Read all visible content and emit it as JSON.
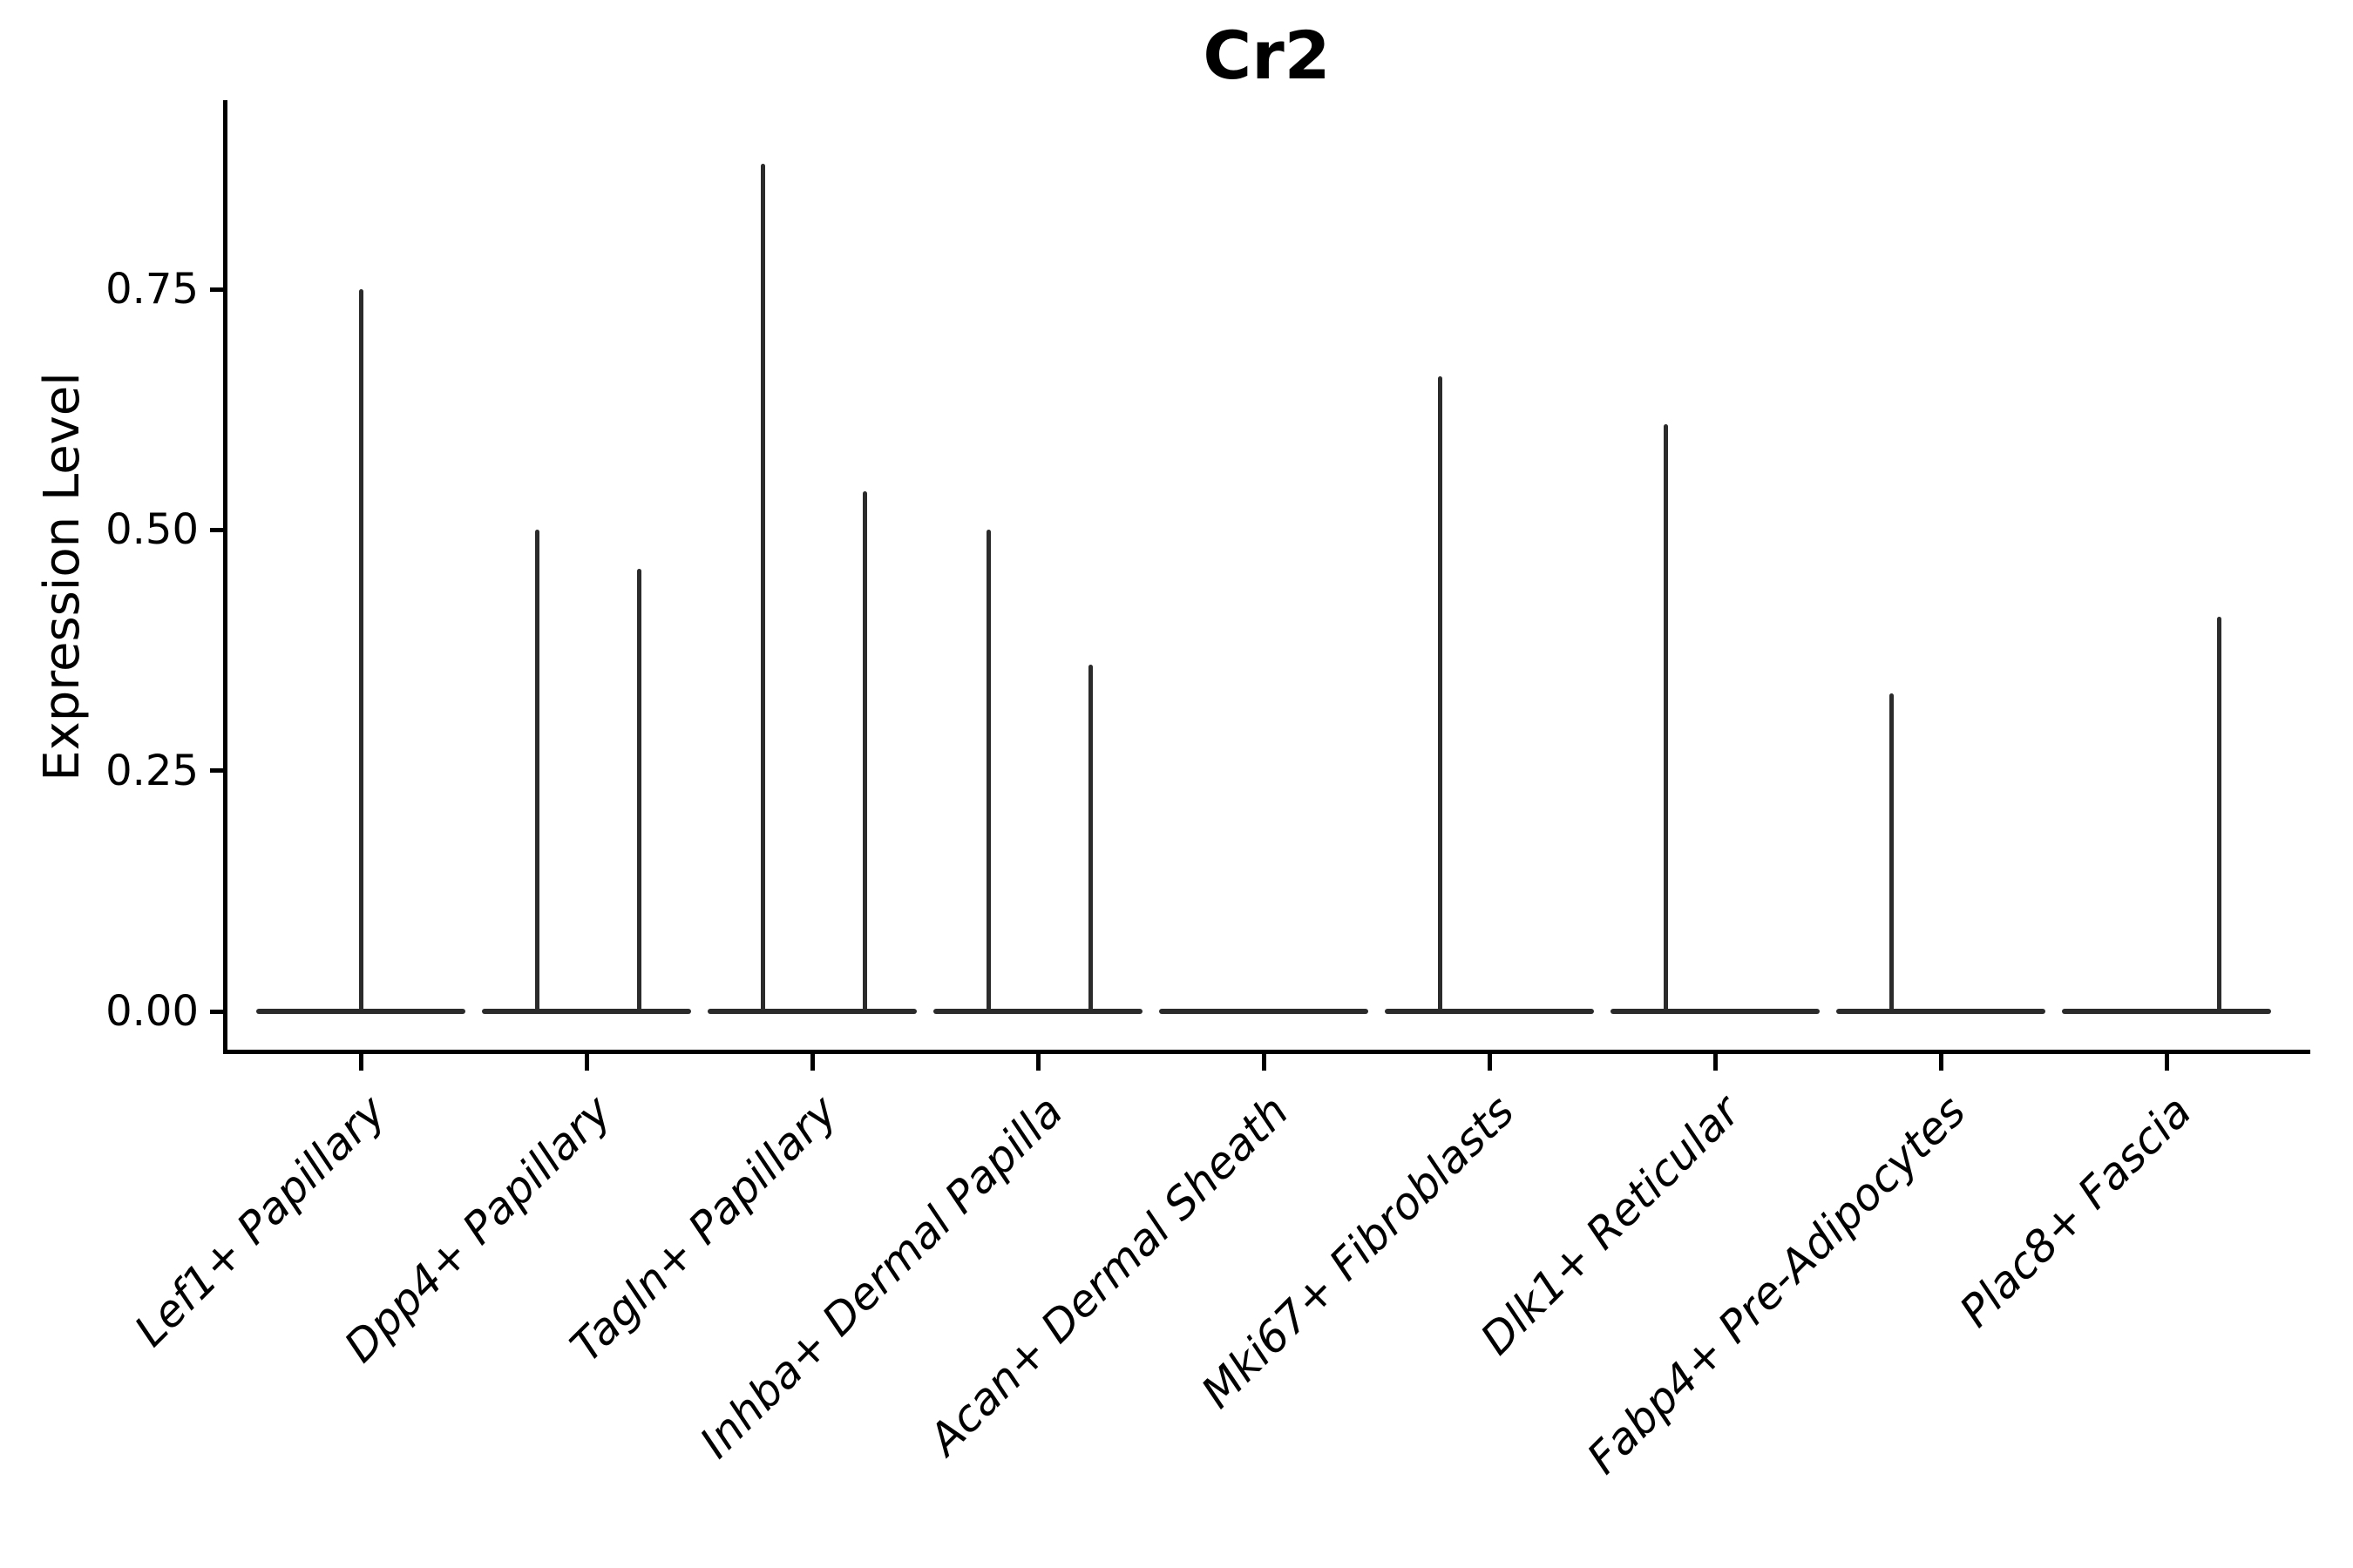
{
  "title": "Cr2",
  "ylabel": "Expression Level",
  "chart_data": {
    "type": "violin",
    "title": "Cr2",
    "xlabel": "",
    "ylabel": "Expression Level",
    "ylim": [
      -0.042,
      0.943
    ],
    "yticks": [
      0.0,
      0.25,
      0.5,
      0.75
    ],
    "ytick_labels": [
      "0.00",
      "0.25",
      "0.50",
      "0.75"
    ],
    "grid": false,
    "legend": "none",
    "categories": [
      "Lef1+ Papillary",
      "Dpp4+ Papillary",
      "Tagln+ Papillary",
      "Inhba+ Dermal Papilla",
      "Acan+ Dermal Sheath",
      "Mki67+ Fibroblasts",
      "Dlk1+ Reticular",
      "Fabp4+ Pre-Adipocytes",
      "Plac8+ Fascia"
    ],
    "violins": [
      {
        "category": "Lef1+ Papillary",
        "base_value": 0.0,
        "spikes": [
          {
            "side": "center",
            "max": 0.75
          }
        ]
      },
      {
        "category": "Dpp4+ Papillary",
        "base_value": 0.0,
        "spikes": [
          {
            "side": "left",
            "max": 0.5
          },
          {
            "side": "right",
            "max": 0.46
          }
        ]
      },
      {
        "category": "Tagln+ Papillary",
        "base_value": 0.0,
        "spikes": [
          {
            "side": "left",
            "max": 0.88
          },
          {
            "side": "right",
            "max": 0.54
          }
        ]
      },
      {
        "category": "Inhba+ Dermal Papilla",
        "base_value": 0.0,
        "spikes": [
          {
            "side": "left",
            "max": 0.5
          },
          {
            "side": "right",
            "max": 0.36
          }
        ]
      },
      {
        "category": "Acan+ Dermal Sheath",
        "base_value": 0.0,
        "spikes": []
      },
      {
        "category": "Mki67+ Fibroblasts",
        "base_value": 0.0,
        "spikes": [
          {
            "side": "left",
            "max": 0.66
          }
        ]
      },
      {
        "category": "Dlk1+ Reticular",
        "base_value": 0.0,
        "spikes": [
          {
            "side": "left",
            "max": 0.61
          }
        ]
      },
      {
        "category": "Fabp4+ Pre-Adipocytes",
        "base_value": 0.0,
        "spikes": [
          {
            "side": "left",
            "max": 0.33
          }
        ]
      },
      {
        "category": "Plac8+ Fascia",
        "base_value": 0.0,
        "spikes": [
          {
            "side": "right",
            "max": 0.41
          }
        ]
      }
    ],
    "colors": {
      "violin": "#2b2b2b",
      "axis": "#000000",
      "text": "#000000",
      "background": "#ffffff"
    }
  }
}
